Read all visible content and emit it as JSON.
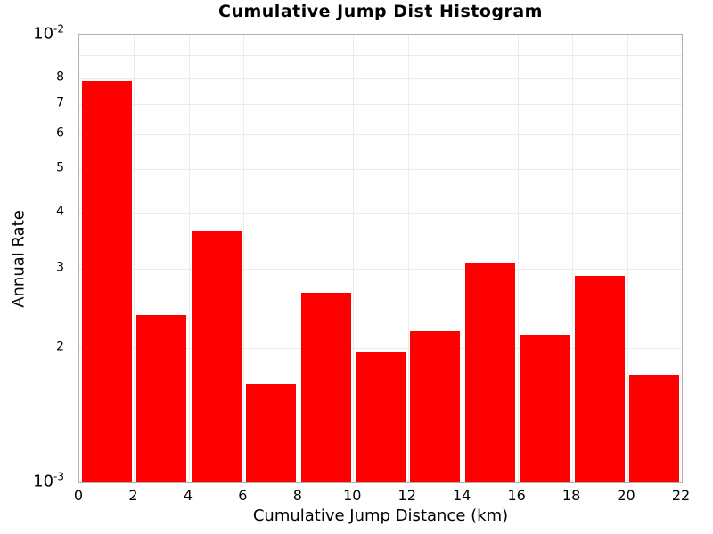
{
  "chart_data": {
    "type": "bar",
    "title": "Cumulative Jump Dist Histogram",
    "xlabel": "Cumulative Jump Distance (km)",
    "ylabel": "Annual Rate",
    "x_scale": "linear",
    "y_scale": "log",
    "xlim": [
      0,
      22
    ],
    "ylim": [
      0.001,
      0.01
    ],
    "bin_width": 2,
    "bar_rel_width": 0.91,
    "bins_start": [
      0,
      2,
      4,
      6,
      8,
      10,
      12,
      14,
      16,
      18,
      20
    ],
    "values": [
      0.0079,
      0.00236,
      0.00363,
      0.00166,
      0.00265,
      0.00196,
      0.00218,
      0.00308,
      0.00214,
      0.00289,
      0.00174
    ],
    "x_ticks": [
      {
        "value": 0,
        "label": "0"
      },
      {
        "value": 2,
        "label": "2"
      },
      {
        "value": 4,
        "label": "4"
      },
      {
        "value": 6,
        "label": "6"
      },
      {
        "value": 8,
        "label": "8"
      },
      {
        "value": 10,
        "label": "10"
      },
      {
        "value": 12,
        "label": "12"
      },
      {
        "value": 14,
        "label": "14"
      },
      {
        "value": 16,
        "label": "16"
      },
      {
        "value": 18,
        "label": "18"
      },
      {
        "value": 20,
        "label": "20"
      },
      {
        "value": 22,
        "label": "22"
      }
    ],
    "y_major_ticks": [
      {
        "value": 0.01,
        "base": "10",
        "exp": "-2"
      },
      {
        "value": 0.001,
        "base": "10",
        "exp": "-3"
      }
    ],
    "y_minor_ticks": [
      {
        "value": 0.002,
        "label": "2"
      },
      {
        "value": 0.003,
        "label": "3"
      },
      {
        "value": 0.004,
        "label": "4"
      },
      {
        "value": 0.005,
        "label": "5"
      },
      {
        "value": 0.006,
        "label": "6"
      },
      {
        "value": 0.007,
        "label": "7"
      },
      {
        "value": 0.008,
        "label": "8"
      }
    ],
    "x_gridlines": [
      2,
      4,
      6,
      8,
      10,
      12,
      14,
      16,
      18,
      20
    ],
    "y_gridlines": [
      0.002,
      0.003,
      0.004,
      0.005,
      0.006,
      0.007,
      0.008,
      0.009
    ],
    "grid": true,
    "legend_position": "none",
    "colors": {
      "bar": "#ff0000",
      "grid": "#ececec",
      "spine": "#b0b0b0",
      "text": "#000000",
      "background": "#ffffff"
    }
  }
}
